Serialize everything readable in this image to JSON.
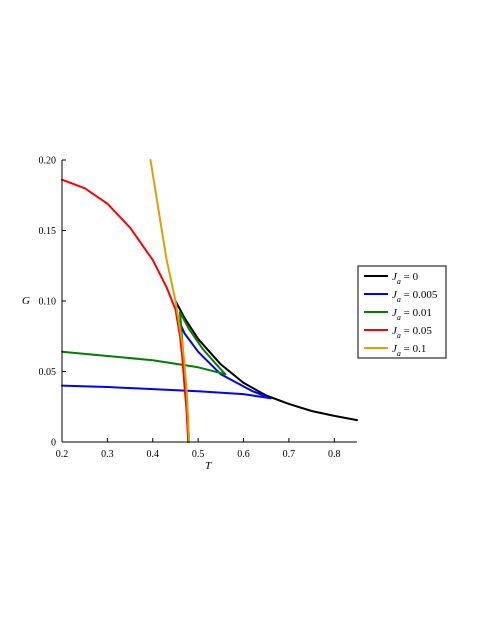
{
  "chart_data": {
    "type": "line",
    "title": "",
    "xlabel": "T",
    "ylabel": "G",
    "xlim": [
      0.2,
      0.85
    ],
    "ylim": [
      0,
      0.2
    ],
    "x_ticks": [
      "0.2",
      "0.3",
      "0.4",
      "0.5",
      "0.6",
      "0.7",
      "0.8"
    ],
    "y_ticks": [
      "0",
      "0.05",
      "0.10",
      "0.15",
      "0.20"
    ],
    "grid": false,
    "legend_position": "right",
    "series": [
      {
        "name": "J_a = 0",
        "legend_main": "J",
        "legend_sub": "a",
        "legend_rest": " = 0",
        "color": "#000000",
        "points": [
          [
            0.45,
            0.1
          ],
          [
            0.47,
            0.088
          ],
          [
            0.5,
            0.073
          ],
          [
            0.55,
            0.055
          ],
          [
            0.6,
            0.042
          ],
          [
            0.65,
            0.033
          ],
          [
            0.7,
            0.027
          ],
          [
            0.75,
            0.022
          ],
          [
            0.8,
            0.0185
          ],
          [
            0.85,
            0.0155
          ]
        ]
      },
      {
        "name": "J_a = 0.005",
        "legend_main": "J",
        "legend_sub": "a",
        "legend_rest": " = 0.005",
        "color": "#0000ff",
        "points": [
          [
            0.2,
            0.04
          ],
          [
            0.3,
            0.039
          ],
          [
            0.4,
            0.0375
          ],
          [
            0.5,
            0.036
          ],
          [
            0.6,
            0.034
          ],
          [
            0.66,
            0.031
          ],
          [
            0.62,
            0.036
          ],
          [
            0.55,
            0.048
          ],
          [
            0.5,
            0.064
          ],
          [
            0.47,
            0.077
          ],
          [
            0.455,
            0.088
          ]
        ]
      },
      {
        "name": "J_a = 0.01",
        "legend_main": "J",
        "legend_sub": "a",
        "legend_rest": " = 0.01",
        "color": "#007f00",
        "points": [
          [
            0.2,
            0.064
          ],
          [
            0.3,
            0.061
          ],
          [
            0.4,
            0.058
          ],
          [
            0.5,
            0.053
          ],
          [
            0.56,
            0.048
          ],
          [
            0.54,
            0.055
          ],
          [
            0.51,
            0.066
          ],
          [
            0.48,
            0.08
          ],
          [
            0.46,
            0.092
          ],
          [
            0.475,
            0.03
          ],
          [
            0.48,
            0.0
          ]
        ]
      },
      {
        "name": "J_a = 0.05",
        "legend_main": "J",
        "legend_sub": "a",
        "legend_rest": " = 0.05",
        "color": "#ff0000",
        "points": [
          [
            0.2,
            0.186
          ],
          [
            0.25,
            0.18
          ],
          [
            0.3,
            0.169
          ],
          [
            0.35,
            0.152
          ],
          [
            0.4,
            0.129
          ],
          [
            0.43,
            0.11
          ],
          [
            0.45,
            0.094
          ],
          [
            0.46,
            0.075
          ],
          [
            0.465,
            0.06
          ],
          [
            0.47,
            0.04
          ],
          [
            0.475,
            0.02
          ],
          [
            0.478,
            0.0
          ]
        ]
      },
      {
        "name": "J_a = 0.1",
        "legend_main": "J",
        "legend_sub": "a",
        "legend_rest": " = 0.1",
        "color": "#e0a000",
        "points": [
          [
            0.395,
            0.2
          ],
          [
            0.41,
            0.17
          ],
          [
            0.43,
            0.13
          ],
          [
            0.45,
            0.1
          ],
          [
            0.46,
            0.08
          ],
          [
            0.465,
            0.07
          ],
          [
            0.47,
            0.055
          ],
          [
            0.475,
            0.035
          ],
          [
            0.48,
            0.0
          ]
        ]
      }
    ]
  }
}
